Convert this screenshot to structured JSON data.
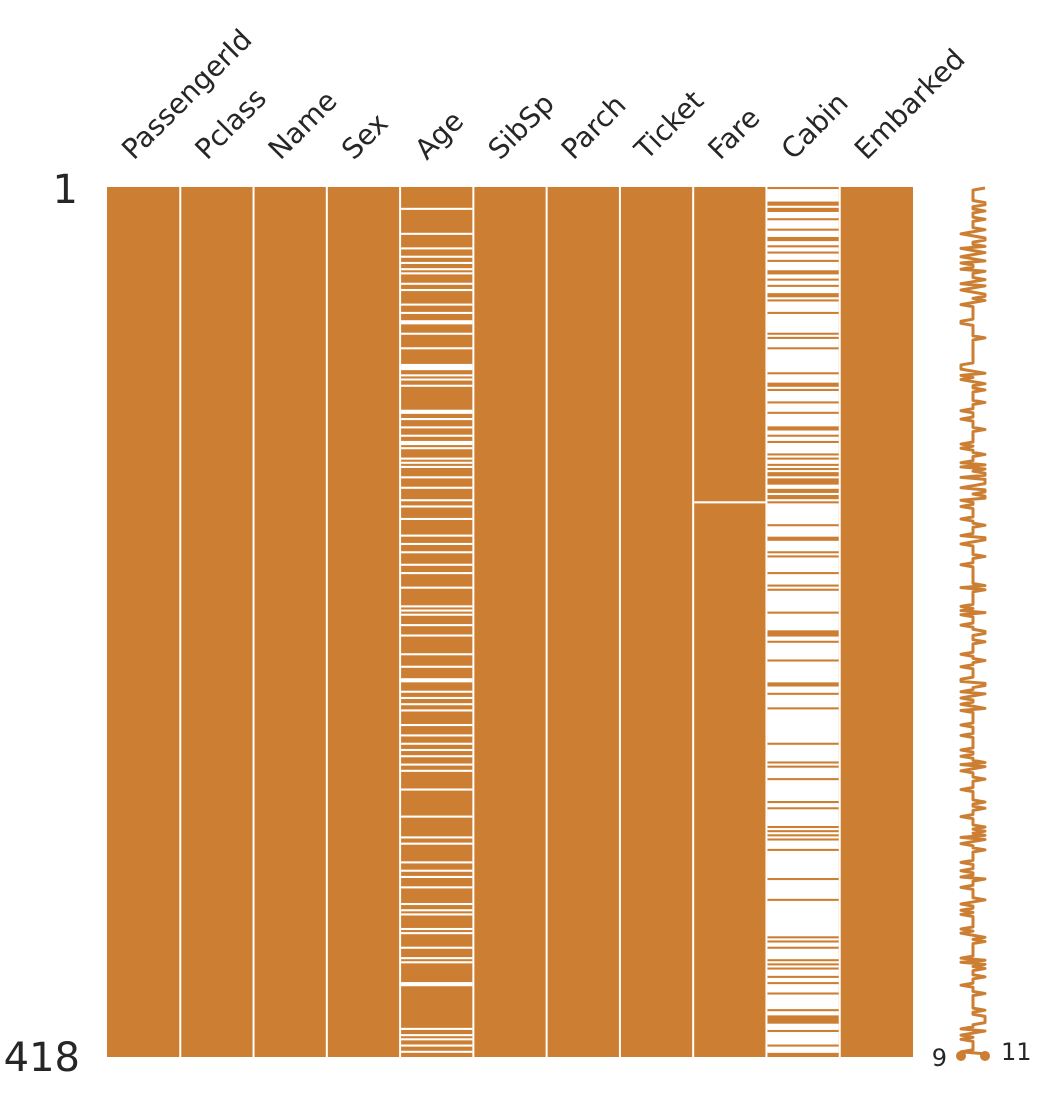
{
  "chart_data": {
    "type": "heatmap",
    "title": "",
    "columns": [
      "PassengerId",
      "Pclass",
      "Name",
      "Sex",
      "Age",
      "SibSp",
      "Parch",
      "Ticket",
      "Fare",
      "Cabin",
      "Embarked"
    ],
    "row_count": 418,
    "row_labels": {
      "first": "1",
      "last": "418"
    },
    "missing_rows": {
      "PassengerId": [],
      "Pclass": [],
      "Name": [],
      "Sex": [],
      "Age": [
        11,
        23,
        30,
        34,
        37,
        40,
        42,
        47,
        50,
        57,
        61,
        65,
        66,
        71,
        78,
        86,
        87,
        88,
        91,
        93,
        96,
        108,
        109,
        112,
        116,
        120,
        123,
        124,
        126,
        131,
        133,
        135,
        140,
        145,
        151,
        154,
        160,
        168,
        172,
        176,
        182,
        186,
        193,
        202,
        204,
        206,
        211,
        216,
        225,
        231,
        237,
        238,
        243,
        246,
        249,
        252,
        259,
        264,
        268,
        271,
        274,
        278,
        281,
        290,
        303,
        313,
        316,
        325,
        329,
        332,
        337,
        345,
        348,
        350,
        357,
        359,
        366,
        371,
        373,
        383,
        384,
        405,
        408,
        410,
        413,
        416
      ],
      "SibSp": [],
      "Parch": [],
      "Ticket": [],
      "Fare": [
        152
      ],
      "Cabin": "most",
      "Embarked": []
    },
    "completeness": {
      "x_range": [
        9,
        11
      ],
      "min_label": "9",
      "max_label": "11",
      "min_row": 418,
      "max_row": 418
    },
    "colors": {
      "present": "#cc7f32",
      "missing": "#ffffff",
      "label": "#262626",
      "sparkline": "#cc7f32"
    },
    "grid": false,
    "legend": "none"
  }
}
